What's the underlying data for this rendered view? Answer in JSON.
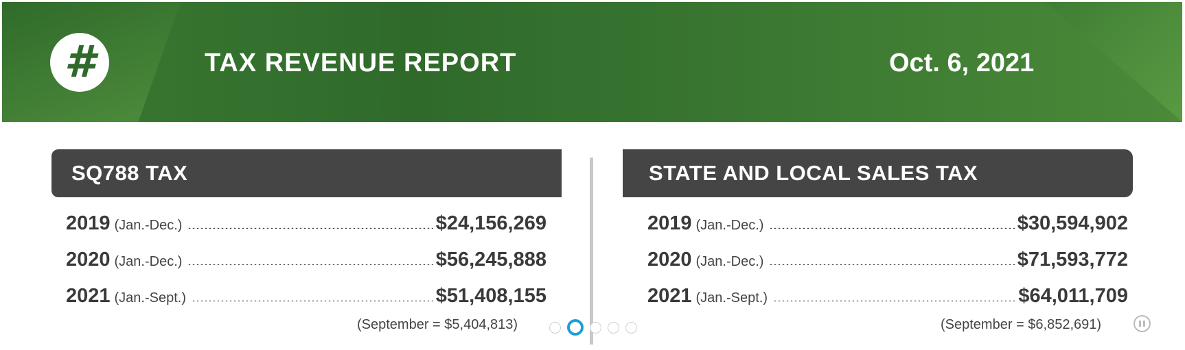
{
  "banner": {
    "logo_glyph": "#",
    "title": "TAX REVENUE REPORT",
    "date": "Oct. 6, 2021"
  },
  "sq788": {
    "header": "SQ788 TAX",
    "rows": [
      {
        "year": "2019",
        "period": "(Jan.-Dec.)",
        "amount": "$24,156,269"
      },
      {
        "year": "2020",
        "period": "(Jan.-Dec.)",
        "amount": "$56,245,888"
      },
      {
        "year": "2021",
        "period": "(Jan.-Sept.)",
        "amount": "$51,408,155"
      }
    ],
    "note": "(September = $5,404,813)"
  },
  "sales": {
    "header": "STATE AND LOCAL SALES TAX",
    "rows": [
      {
        "year": "2019",
        "period": "(Jan.-Dec.)",
        "amount": "$30,594,902"
      },
      {
        "year": "2020",
        "period": "(Jan.-Dec.)",
        "amount": "$71,593,772"
      },
      {
        "year": "2021",
        "period": "(Jan.-Sept.)",
        "amount": "$64,011,709"
      }
    ],
    "note": "(September = $6,852,691)"
  },
  "colors": {
    "banner_green": "#3c7a32",
    "header_dark": "#454545",
    "pager_active": "#1ea0d6"
  },
  "carousel": {
    "slide_count": 5,
    "active_slide": 2
  }
}
